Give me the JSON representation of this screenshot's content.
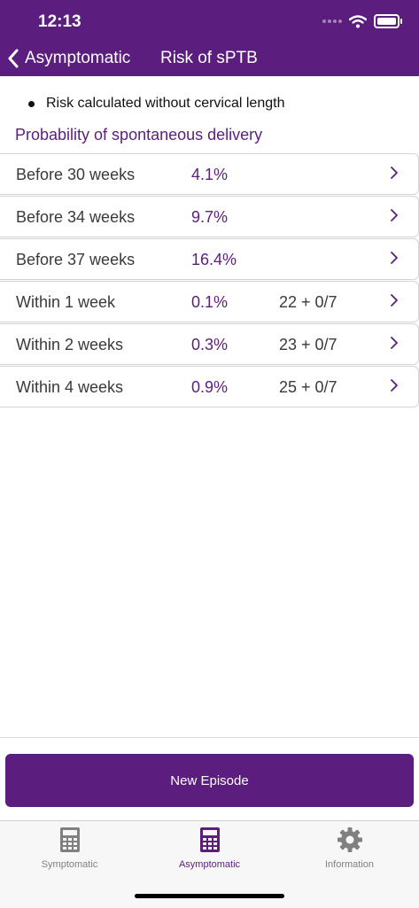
{
  "status_bar": {
    "time": "12:13"
  },
  "nav": {
    "back_label": "Asymptomatic",
    "title": "Risk of sPTB"
  },
  "note": "Risk calculated without cervical length",
  "section_title": "Probability of spontaneous delivery",
  "rows": [
    {
      "label": "Before 30 weeks",
      "value": "4.1%",
      "ga": ""
    },
    {
      "label": "Before 34 weeks",
      "value": "9.7%",
      "ga": ""
    },
    {
      "label": "Before 37 weeks",
      "value": "16.4%",
      "ga": ""
    },
    {
      "label": "Within 1 week",
      "value": "0.1%",
      "ga": "22 + 0/7"
    },
    {
      "label": "Within 2 weeks",
      "value": "0.3%",
      "ga": "23 + 0/7"
    },
    {
      "label": "Within 4 weeks",
      "value": "0.9%",
      "ga": "25 + 0/7"
    }
  ],
  "primary_button": "New Episode",
  "tabs": [
    {
      "label": "Symptomatic",
      "icon": "calculator-icon",
      "active": false
    },
    {
      "label": "Asymptomatic",
      "icon": "calculator-icon",
      "active": true
    },
    {
      "label": "Information",
      "icon": "gear-icon",
      "active": false
    }
  ],
  "colors": {
    "brand": "#5b1e7e",
    "inactive_tab": "#808080"
  }
}
